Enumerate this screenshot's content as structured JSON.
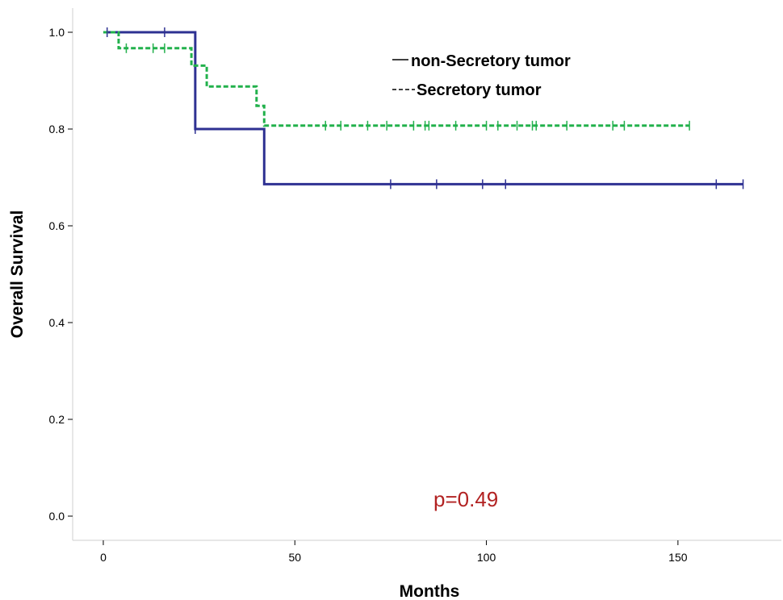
{
  "chart_data": {
    "type": "line",
    "xlabel": "Months",
    "ylabel": "Overall Survival",
    "xlim": [
      -8,
      177
    ],
    "ylim": [
      -0.05,
      1.05
    ],
    "xticks": [
      0,
      50,
      100,
      150
    ],
    "yticks": [
      0.0,
      0.2,
      0.4,
      0.6,
      0.8,
      1.0
    ],
    "xtick_labels": [
      "0",
      "50",
      "100",
      "150"
    ],
    "ytick_labels": [
      "0.0",
      "0.2",
      "0.4",
      "0.6",
      "0.8",
      "1.0"
    ],
    "grid": false,
    "legend_position": "top-right",
    "series": [
      {
        "name": "non-Secretory tumor",
        "color": "#2e3192",
        "dash": "solid",
        "steps": [
          [
            0,
            1.0
          ],
          [
            24,
            0.8
          ],
          [
            42,
            0.686
          ],
          [
            167,
            0.686
          ]
        ],
        "censored": [
          [
            1,
            1.0
          ],
          [
            16,
            1.0
          ],
          [
            24,
            0.8
          ],
          [
            75,
            0.686
          ],
          [
            87,
            0.686
          ],
          [
            99,
            0.686
          ],
          [
            105,
            0.686
          ],
          [
            160,
            0.686
          ],
          [
            167,
            0.686
          ]
        ]
      },
      {
        "name": "Secretory tumor",
        "color": "#22b14c",
        "dash": "dashed",
        "steps": [
          [
            0,
            1.0
          ],
          [
            4,
            0.967
          ],
          [
            23,
            0.931
          ],
          [
            27,
            0.888
          ],
          [
            40,
            0.848
          ],
          [
            42,
            0.807
          ],
          [
            153,
            0.807
          ]
        ],
        "censored": [
          [
            6,
            0.967
          ],
          [
            13,
            0.967
          ],
          [
            16,
            0.967
          ],
          [
            58,
            0.807
          ],
          [
            62,
            0.807
          ],
          [
            69,
            0.807
          ],
          [
            74,
            0.807
          ],
          [
            81,
            0.807
          ],
          [
            84,
            0.807
          ],
          [
            85,
            0.807
          ],
          [
            92,
            0.807
          ],
          [
            100,
            0.807
          ],
          [
            103,
            0.807
          ],
          [
            108,
            0.807
          ],
          [
            112,
            0.807
          ],
          [
            113,
            0.807
          ],
          [
            121,
            0.807
          ],
          [
            133,
            0.807
          ],
          [
            136,
            0.807
          ],
          [
            153,
            0.807
          ]
        ]
      }
    ],
    "annotation": {
      "text": "p=0.49",
      "color": "#b22222"
    }
  }
}
